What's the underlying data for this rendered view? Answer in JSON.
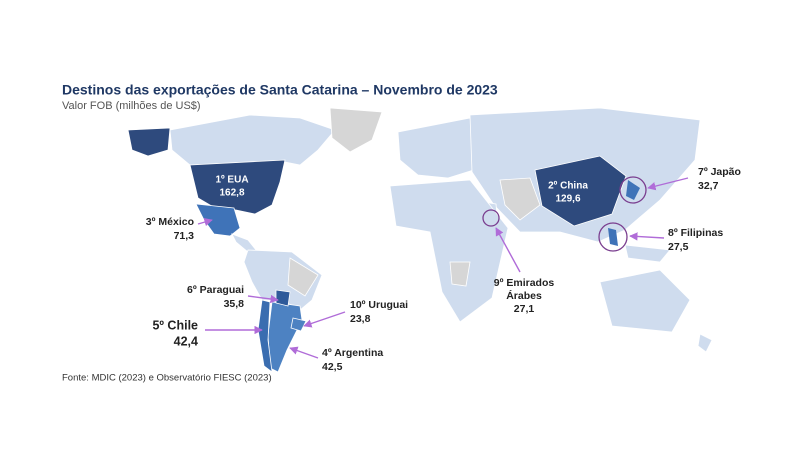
{
  "header": {
    "title": "Destinos das exportações de Santa Catarina – Novembro de 2023",
    "subtitle": "Valor FOB (milhões de US$)"
  },
  "destinations": [
    {
      "label": [
        "1º EUA"
      ],
      "value": "162,8"
    },
    {
      "label": [
        "2º China"
      ],
      "value": "129,6"
    },
    {
      "label": [
        "3º México"
      ],
      "value": "71,3"
    },
    {
      "label": [
        "4º Argentina"
      ],
      "value": "42,5"
    },
    {
      "label": [
        "5º Chile"
      ],
      "value": "42,4"
    },
    {
      "label": [
        "6º Paraguai"
      ],
      "value": "35,8"
    },
    {
      "label": [
        "7º Japão"
      ],
      "value": "32,7"
    },
    {
      "label": [
        "8º Filipinas"
      ],
      "value": "27,5"
    },
    {
      "label": [
        "9º Emirados",
        "Árabes"
      ],
      "value": "27,1"
    },
    {
      "label": [
        "10º Uruguai"
      ],
      "value": "23,8"
    }
  ],
  "footer": {
    "source": "Fonte: MDIC (2023) e Observatório FIESC (2023)"
  }
}
